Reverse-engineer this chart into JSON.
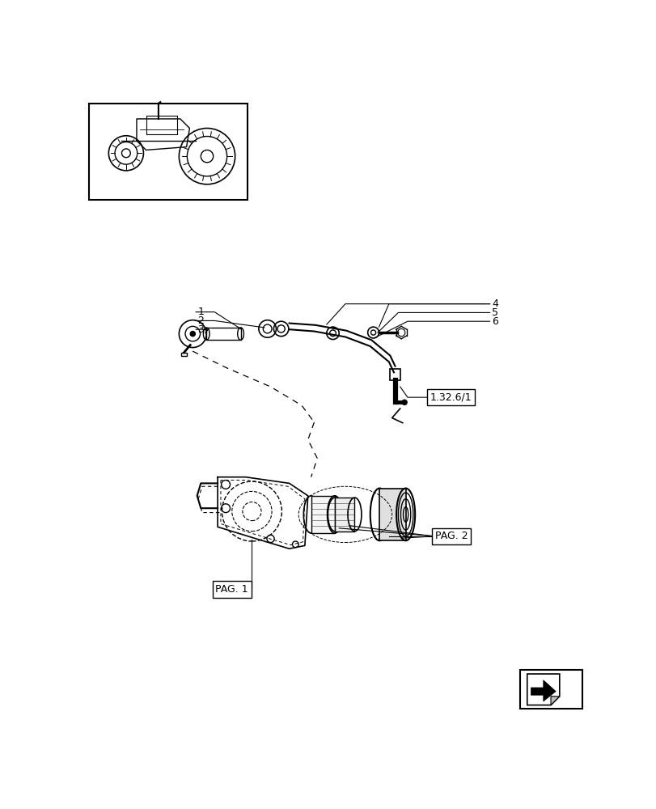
{
  "bg_color": "#ffffff",
  "line_color": "#000000",
  "fig_width": 8.12,
  "fig_height": 10.0,
  "dpi": 100,
  "label_132": "1.32.6/1",
  "label_pag1": "PAG. 1",
  "label_pag2": "PAG. 2",
  "part_labels": [
    "1",
    "2",
    "3",
    "4",
    "5",
    "6"
  ]
}
